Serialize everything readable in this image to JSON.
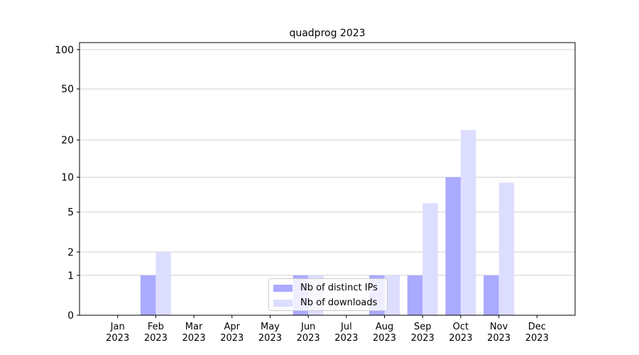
{
  "chart_data": {
    "type": "bar",
    "title": "quadprog 2023",
    "categories": [
      "Jan 2023",
      "Feb 2023",
      "Mar 2023",
      "Apr 2023",
      "May 2023",
      "Jun 2023",
      "Jul 2023",
      "Aug 2023",
      "Sep 2023",
      "Oct 2023",
      "Nov 2023",
      "Dec 2023"
    ],
    "series": [
      {
        "name": "Nb of distinct IPs",
        "color": "#aaaaff",
        "values": [
          0,
          1,
          0,
          0,
          0,
          1,
          0,
          1,
          1,
          10,
          1,
          0
        ]
      },
      {
        "name": "Nb of downloads",
        "color": "#ddddff",
        "values": [
          0,
          2,
          0,
          0,
          0,
          1,
          0,
          1,
          6,
          24,
          9,
          0
        ]
      }
    ],
    "yscale": "log1p",
    "ylim": [
      0,
      113
    ],
    "yticks": [
      0,
      1,
      2,
      5,
      10,
      20,
      50,
      100
    ],
    "grid": true,
    "legend": "lower center"
  }
}
